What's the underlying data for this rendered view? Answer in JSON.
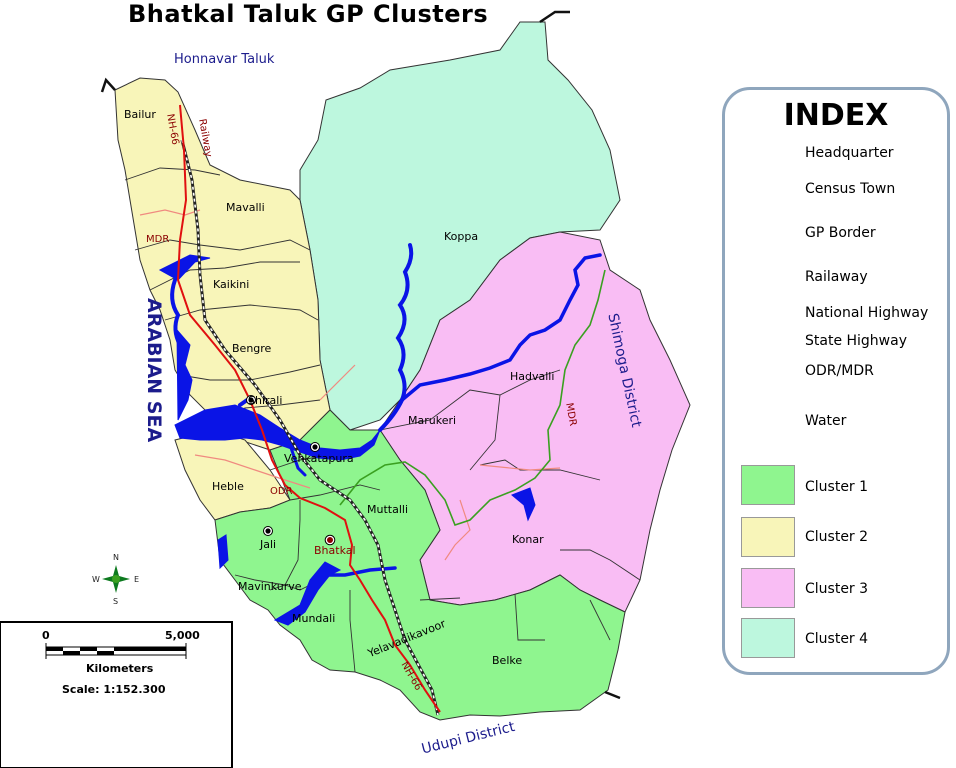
{
  "title": "Bhatkal Taluk GP Clusters",
  "boundary_labels": {
    "north": "Honnavar Taluk",
    "east": "Shimoga District",
    "south": "Udupi District",
    "west": "ARABIAN SEA"
  },
  "gp_labels": {
    "bailur": "Bailur",
    "mavalli": "Mavalli",
    "kaikini": "Kaikini",
    "bengre": "Bengre",
    "shirali": "Shirali",
    "koppa": "Koppa",
    "hadvalli": "Hadvalli",
    "marukeri": "Marukeri",
    "venkatapura": "Venkatapura",
    "heble": "Heble",
    "muttalli": "Muttalli",
    "jali": "Jali",
    "bhatkal": "Bhatkal",
    "konar": "Konar",
    "mavinkurve": "Mavinkurve",
    "mundali": "Mundali",
    "yelavadikavoor": "Yelavadikavoor",
    "belke": "Belke"
  },
  "road_labels": {
    "nh66_north": "NH-66",
    "nh66_south": "NH-66",
    "railway": "Railway",
    "mdr_west": "MDR",
    "mdr_east": "MDR",
    "odr": "ODR"
  },
  "index": {
    "title": "INDEX",
    "items": [
      {
        "label": "Headquarter",
        "icon": "headquarter-icon"
      },
      {
        "label": "Census Town",
        "icon": "census-town-icon"
      },
      {
        "label": "GP Border",
        "icon": "gp-border-icon"
      },
      {
        "label": "Railaway",
        "icon": "railway-icon"
      },
      {
        "label": "National Highway",
        "icon": "national-highway-icon"
      },
      {
        "label": "State Highway",
        "icon": "state-highway-icon"
      },
      {
        "label": "ODR/MDR",
        "icon": "odr-mdr-icon"
      },
      {
        "label": "Water",
        "icon": "water-icon"
      }
    ],
    "clusters": [
      {
        "label": "Cluster 1",
        "color": "#8ff58f"
      },
      {
        "label": "Cluster 2",
        "color": "#f8f5b9"
      },
      {
        "label": "Cluster 3",
        "color": "#f9bdf4"
      },
      {
        "label": "Cluster 4",
        "color": "#bdf7de"
      }
    ]
  },
  "scale": {
    "tick_start": "0",
    "tick_end": "5,000",
    "unit": "Kilometers",
    "scale_text": "Scale: 1:152.300"
  },
  "compass": {
    "n": "N",
    "s": "S",
    "e": "E",
    "w": "W"
  },
  "colors": {
    "cluster1": "#8ff58f",
    "cluster2": "#f8f5b9",
    "cluster3": "#f9bdf4",
    "cluster4": "#bdf7de",
    "water": "#0a14e6",
    "national_highway": "#e01010",
    "state_highway": "#3aa020",
    "odr_mdr": "#f08a80",
    "label_blue": "#1c1c8c",
    "road_label": "#8b0000"
  }
}
